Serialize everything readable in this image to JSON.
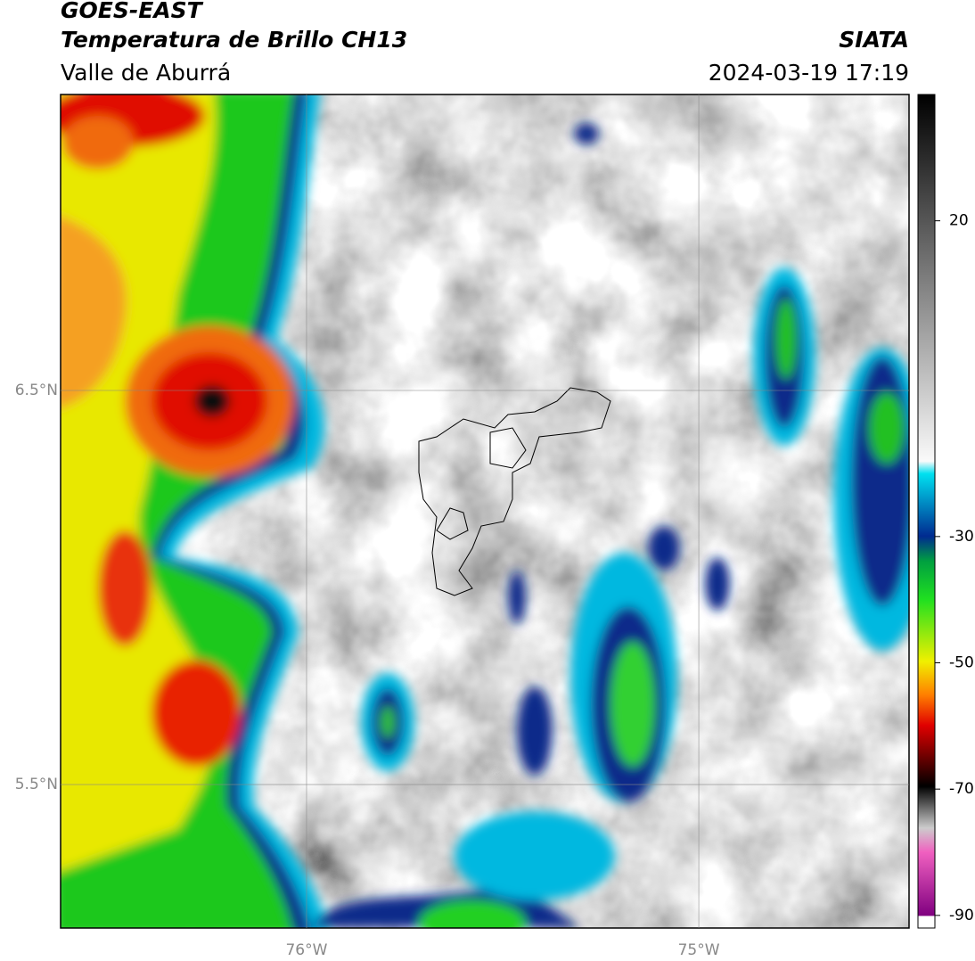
{
  "header": {
    "title": "GOES-EAST",
    "subtitle": "Temperatura de Brillo CH13",
    "region": "Valle de Aburrá",
    "source": "SIATA",
    "datetime": "2024-03-19 17:19"
  },
  "chart_data": {
    "type": "map",
    "xlim": [
      -76.627,
      -74.464
    ],
    "ylim": [
      5.136,
      7.251
    ],
    "xticks": [
      {
        "value": -76,
        "label": "76°W"
      },
      {
        "value": -75,
        "label": "75°W"
      }
    ],
    "yticks": [
      {
        "value": 6.5,
        "label": "6.5°N"
      },
      {
        "value": 5.5,
        "label": "5.5°N"
      }
    ],
    "grid": true,
    "colorbar": {
      "lim": [
        -92,
        40
      ],
      "ticks": [
        20,
        -30,
        -50,
        -70,
        -90
      ]
    }
  }
}
